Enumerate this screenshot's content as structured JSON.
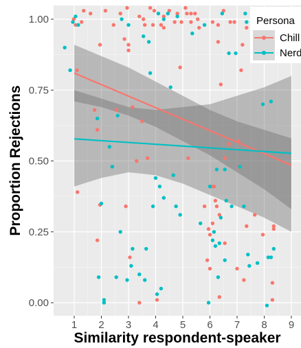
{
  "chart_data": {
    "type": "scatter",
    "xlabel": "Similarity respondent-speaker",
    "ylabel": "Proportion Rejections",
    "xlim": [
      0.3,
      9.3
    ],
    "ylim": [
      -0.05,
      1.05
    ],
    "x_ticks": [
      "1",
      "2",
      "3",
      "4",
      "5",
      "6",
      "7",
      "8",
      "9"
    ],
    "y_ticks": [
      "0.00",
      "0.25",
      "0.50",
      "0.75",
      "1.00"
    ],
    "grid": true,
    "background": "#ebebeb",
    "legend": {
      "title": "Persona",
      "placement": "top-right",
      "entries": [
        "Chill",
        "Nerd"
      ]
    },
    "series": [
      {
        "name": "Chill",
        "color": "#f8766d",
        "trend": {
          "x": [
            1,
            9
          ],
          "y": [
            0.81,
            0.485
          ]
        },
        "ci": {
          "x": [
            1,
            2,
            3,
            4,
            5,
            6,
            7,
            8,
            9
          ],
          "lower": [
            0.71,
            0.69,
            0.66,
            0.62,
            0.57,
            0.52,
            0.46,
            0.4,
            0.33
          ],
          "upper": [
            0.91,
            0.87,
            0.83,
            0.78,
            0.73,
            0.68,
            0.64,
            0.61,
            0.58
          ]
        },
        "points": [
          [
            0.98,
            1.0
          ],
          [
            1.05,
            0.98
          ],
          [
            1.1,
            0.82
          ],
          [
            1.12,
            0.39
          ],
          [
            1.27,
            0.99
          ],
          [
            1.35,
            1.03
          ],
          [
            1.6,
            1.02
          ],
          [
            1.75,
            0.68
          ],
          [
            1.85,
            0.61
          ],
          [
            1.85,
            0.22
          ],
          [
            1.95,
            0.91
          ],
          [
            1.95,
            0.345
          ],
          [
            2.15,
            1.03
          ],
          [
            2.45,
            0.98
          ],
          [
            2.55,
            0.68
          ],
          [
            2.7,
            1.02
          ],
          [
            2.85,
            0.93
          ],
          [
            2.9,
            0.34
          ],
          [
            2.95,
            1.04
          ],
          [
            3.0,
            0.91
          ],
          [
            3.0,
            0.89
          ],
          [
            3.05,
            0.16
          ],
          [
            3.15,
            0.69
          ],
          [
            3.3,
            0.5
          ],
          [
            3.4,
            0.0
          ],
          [
            3.4,
            1.01
          ],
          [
            3.5,
            0.64
          ],
          [
            3.55,
            1.0
          ],
          [
            3.6,
            0.98
          ],
          [
            3.7,
            0.51
          ],
          [
            3.8,
            1.04
          ],
          [
            3.9,
            0.98
          ],
          [
            3.95,
            1.03
          ],
          [
            4.05,
            0.01
          ],
          [
            4.2,
            0.98
          ],
          [
            4.3,
            1.01
          ],
          [
            4.3,
            0.97
          ],
          [
            4.5,
            1.03
          ],
          [
            4.7,
            0.99
          ],
          [
            4.8,
            1.02
          ],
          [
            4.9,
            0.83
          ],
          [
            4.95,
            0.99
          ],
          [
            5.1,
            1.04
          ],
          [
            5.15,
            1.02
          ],
          [
            5.2,
            0.51
          ],
          [
            5.3,
            1.02
          ],
          [
            5.3,
            0.99
          ],
          [
            5.45,
            1.02
          ],
          [
            5.55,
            1.0
          ],
          [
            5.6,
            0.97
          ],
          [
            5.8,
            0.34
          ],
          [
            5.9,
            0.15
          ],
          [
            5.95,
            0.26
          ],
          [
            6.0,
            0.24
          ],
          [
            6.0,
            0.12
          ],
          [
            6.05,
            0.41
          ],
          [
            6.1,
            0.99
          ],
          [
            6.1,
            0.28
          ],
          [
            6.15,
            0.41
          ],
          [
            6.2,
            0.36
          ],
          [
            6.25,
            0.34
          ],
          [
            6.3,
            0.98
          ],
          [
            6.3,
            0.92
          ],
          [
            6.35,
            0.31
          ],
          [
            6.35,
            0.02
          ],
          [
            6.4,
            0.77
          ],
          [
            6.5,
            1.03
          ],
          [
            6.55,
            0.51
          ],
          [
            6.55,
            0.21
          ],
          [
            6.7,
            0.56
          ],
          [
            6.75,
            0.99
          ],
          [
            6.9,
            0.99
          ],
          [
            7.0,
            0.12
          ],
          [
            7.05,
            0.57
          ],
          [
            7.05,
            0.48
          ],
          [
            7.15,
            0.82
          ],
          [
            7.2,
            0.91
          ],
          [
            7.25,
            0.08
          ],
          [
            7.35,
            0.97
          ],
          [
            7.35,
            0.27
          ],
          [
            7.65,
            0.31
          ],
          [
            7.95,
            0.24
          ],
          [
            8.3,
            0.07
          ],
          [
            8.3,
            0.01
          ],
          [
            8.35,
            0.27
          ],
          [
            8.35,
            0.26
          ]
        ]
      },
      {
        "name": "Nerd",
        "color": "#00bfc4",
        "trend": {
          "x": [
            1,
            9
          ],
          "y": [
            0.578,
            0.527
          ]
        },
        "ci": {
          "x": [
            1,
            2,
            3,
            4,
            5,
            6,
            7,
            8,
            9
          ],
          "lower": [
            0.41,
            0.44,
            0.46,
            0.45,
            0.42,
            0.38,
            0.34,
            0.3,
            0.25
          ],
          "upper": [
            0.75,
            0.72,
            0.69,
            0.68,
            0.69,
            0.7,
            0.73,
            0.76,
            0.8
          ]
        },
        "points": [
          [
            0.65,
            0.9
          ],
          [
            0.85,
            0.82
          ],
          [
            0.95,
            0.99
          ],
          [
            1.05,
            1.01
          ],
          [
            1.15,
            0.98
          ],
          [
            1.85,
            0.65
          ],
          [
            1.9,
            0.09
          ],
          [
            2.0,
            0.35
          ],
          [
            2.1,
            0.01
          ],
          [
            2.1,
            0.0
          ],
          [
            2.3,
            0.55
          ],
          [
            2.4,
            0.48
          ],
          [
            2.55,
            0.09
          ],
          [
            2.6,
            0.66
          ],
          [
            2.7,
            0.25
          ],
          [
            2.75,
            1.0
          ],
          [
            2.95,
            0.08
          ],
          [
            3.0,
            0.98
          ],
          [
            3.1,
            0.13
          ],
          [
            3.15,
            0.19
          ],
          [
            3.4,
            0.1
          ],
          [
            3.55,
            0.94
          ],
          [
            3.6,
            0.08
          ],
          [
            3.65,
            0.19
          ],
          [
            3.75,
            0.92
          ],
          [
            3.8,
            0.81
          ],
          [
            3.9,
            0.34
          ],
          [
            4.0,
            0.44
          ],
          [
            4.05,
            0.03
          ],
          [
            4.1,
            1.02
          ],
          [
            4.15,
            0.41
          ],
          [
            4.2,
            0.05
          ],
          [
            4.3,
            0.37
          ],
          [
            4.3,
            1.0
          ],
          [
            4.45,
            1.02
          ],
          [
            4.55,
            0.76
          ],
          [
            4.65,
            0.45
          ],
          [
            4.75,
            0.34
          ],
          [
            4.8,
            1.01
          ],
          [
            4.9,
            0.31
          ],
          [
            5.35,
            0.95
          ],
          [
            5.65,
            0.28
          ],
          [
            5.8,
            0.98
          ],
          [
            5.95,
            0.0
          ],
          [
            6.0,
            0.41
          ],
          [
            6.1,
            0.22
          ],
          [
            6.15,
            0.25
          ],
          [
            6.2,
            0.2
          ],
          [
            6.25,
            0.47
          ],
          [
            6.3,
            0.09
          ],
          [
            6.35,
            0.21
          ],
          [
            6.4,
            0.3
          ],
          [
            6.45,
            1.02
          ],
          [
            6.55,
            0.47
          ],
          [
            6.55,
            0.15
          ],
          [
            6.6,
            0.36
          ],
          [
            6.7,
            0.88
          ],
          [
            6.8,
            0.34
          ],
          [
            6.95,
            0.88
          ],
          [
            7.1,
            0.48
          ],
          [
            7.25,
            0.34
          ],
          [
            7.3,
            1.02
          ],
          [
            7.35,
            0.99
          ],
          [
            7.4,
            0.17
          ],
          [
            7.45,
            0.13
          ],
          [
            7.75,
            0.14
          ],
          [
            7.8,
            0.97
          ],
          [
            7.95,
            0.7
          ],
          [
            8.1,
            -0.01
          ],
          [
            8.15,
            0.16
          ],
          [
            8.25,
            0.71
          ],
          [
            8.25,
            0.16
          ],
          [
            8.35,
            0.19
          ]
        ]
      }
    ]
  }
}
